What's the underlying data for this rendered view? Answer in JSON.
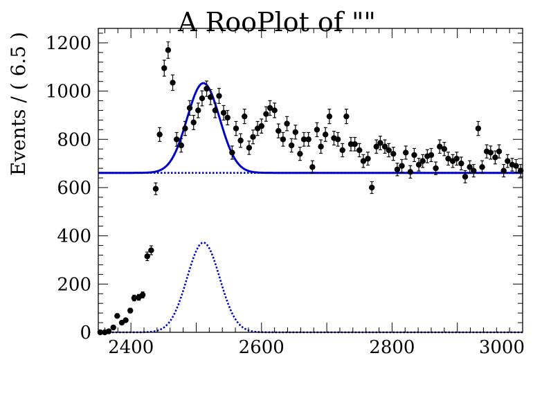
{
  "chart_data": {
    "type": "scatter",
    "title": "A RooPlot of \"\"",
    "xlabel": "",
    "ylabel": "Events / ( 6.5 )",
    "xlim": [
      2350,
      3000
    ],
    "ylim": [
      0,
      1260
    ],
    "x_ticks": [
      "2400",
      "2600",
      "2800",
      "3000"
    ],
    "y_ticks": [
      "0",
      "200",
      "400",
      "600",
      "800",
      "1000",
      "1200"
    ],
    "grid": false,
    "legend": "none",
    "colors": {
      "points": "#000000",
      "fit": "#0000cc",
      "axes": "#000000"
    },
    "series": [
      {
        "type": "scatter",
        "points": [
          [
            2353,
            0
          ],
          [
            2360,
            0
          ],
          [
            2366,
            4
          ],
          [
            2373,
            20
          ],
          [
            2379,
            68
          ],
          [
            2386,
            40
          ],
          [
            2392,
            50
          ],
          [
            2399,
            90
          ],
          [
            2405,
            142
          ],
          [
            2412,
            145
          ],
          [
            2418,
            155
          ],
          [
            2425,
            315
          ],
          [
            2431,
            340
          ],
          [
            2438,
            595
          ],
          [
            2444,
            820
          ],
          [
            2451,
            1095
          ],
          [
            2457,
            1170
          ],
          [
            2464,
            1035
          ],
          [
            2470,
            800
          ],
          [
            2477,
            775
          ],
          [
            2483,
            845
          ],
          [
            2490,
            930
          ],
          [
            2496,
            870
          ],
          [
            2503,
            920
          ],
          [
            2509,
            970
          ],
          [
            2516,
            1010
          ],
          [
            2522,
            975
          ],
          [
            2529,
            920
          ],
          [
            2535,
            980
          ],
          [
            2542,
            910
          ],
          [
            2548,
            890
          ],
          [
            2555,
            745
          ],
          [
            2561,
            845
          ],
          [
            2568,
            795
          ],
          [
            2574,
            895
          ],
          [
            2581,
            765
          ],
          [
            2587,
            810
          ],
          [
            2594,
            845
          ],
          [
            2600,
            855
          ],
          [
            2607,
            905
          ],
          [
            2613,
            930
          ],
          [
            2620,
            920
          ],
          [
            2626,
            835
          ],
          [
            2633,
            800
          ],
          [
            2639,
            865
          ],
          [
            2646,
            775
          ],
          [
            2652,
            830
          ],
          [
            2659,
            740
          ],
          [
            2665,
            800
          ],
          [
            2672,
            800
          ],
          [
            2678,
            685
          ],
          [
            2685,
            840
          ],
          [
            2691,
            770
          ],
          [
            2698,
            820
          ],
          [
            2704,
            895
          ],
          [
            2711,
            805
          ],
          [
            2717,
            800
          ],
          [
            2724,
            755
          ],
          [
            2730,
            895
          ],
          [
            2737,
            780
          ],
          [
            2743,
            780
          ],
          [
            2750,
            755
          ],
          [
            2756,
            710
          ],
          [
            2763,
            720
          ],
          [
            2769,
            600
          ],
          [
            2776,
            770
          ],
          [
            2782,
            785
          ],
          [
            2789,
            770
          ],
          [
            2795,
            755
          ],
          [
            2802,
            740
          ],
          [
            2808,
            675
          ],
          [
            2815,
            690
          ],
          [
            2821,
            745
          ],
          [
            2828,
            665
          ],
          [
            2834,
            735
          ],
          [
            2841,
            695
          ],
          [
            2847,
            710
          ],
          [
            2854,
            730
          ],
          [
            2860,
            735
          ],
          [
            2867,
            680
          ],
          [
            2873,
            770
          ],
          [
            2880,
            760
          ],
          [
            2886,
            720
          ],
          [
            2893,
            710
          ],
          [
            2899,
            720
          ],
          [
            2906,
            700
          ],
          [
            2912,
            645
          ],
          [
            2919,
            685
          ],
          [
            2925,
            670
          ],
          [
            2932,
            845
          ],
          [
            2938,
            685
          ],
          [
            2945,
            750
          ],
          [
            2951,
            745
          ],
          [
            2958,
            725
          ],
          [
            2964,
            750
          ],
          [
            2971,
            670
          ],
          [
            2977,
            710
          ],
          [
            2984,
            695
          ],
          [
            2990,
            690
          ],
          [
            2997,
            670
          ]
        ]
      },
      {
        "type": "line",
        "style": "solid",
        "function": "gaussian-plus-constant",
        "mean": 2511,
        "sigma": 25,
        "amplitude": 372,
        "baseline": 661
      },
      {
        "type": "line",
        "style": "dotted",
        "function": "constant",
        "baseline": 661
      },
      {
        "type": "line",
        "style": "dotted",
        "function": "gaussian",
        "mean": 2511,
        "sigma": 25,
        "amplitude": 372,
        "baseline": 0
      }
    ]
  }
}
